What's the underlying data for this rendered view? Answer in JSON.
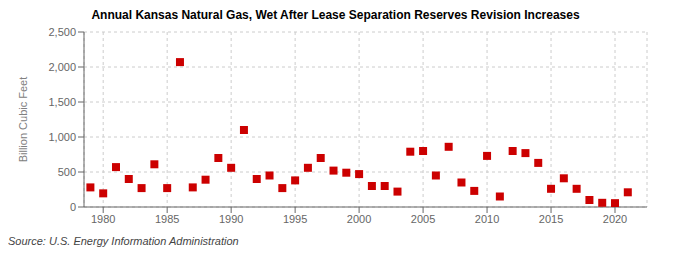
{
  "chart_data": {
    "type": "scatter",
    "title": "Annual Kansas Natural Gas, Wet After Lease Separation Reserves Revision Increases",
    "y_label": "Billion Cubic Feet",
    "annotations": [
      "Source: U.S. Energy Information Administration"
    ],
    "x": [
      1979,
      1980,
      1981,
      1982,
      1983,
      1984,
      1985,
      1986,
      1987,
      1988,
      1989,
      1990,
      1991,
      1992,
      1993,
      1994,
      1995,
      1996,
      1997,
      1998,
      1999,
      2000,
      2001,
      2002,
      2003,
      2004,
      2005,
      2006,
      2007,
      2008,
      2009,
      2010,
      2011,
      2012,
      2013,
      2014,
      2015,
      2016,
      2017,
      2018,
      2019,
      2020,
      2021
    ],
    "values": [
      280,
      195,
      570,
      400,
      270,
      610,
      270,
      2070,
      280,
      390,
      700,
      560,
      1100,
      400,
      450,
      270,
      380,
      560,
      700,
      520,
      490,
      470,
      300,
      300,
      220,
      790,
      800,
      450,
      860,
      350,
      230,
      730,
      150,
      800,
      770,
      630,
      260,
      410,
      260,
      100,
      60,
      55,
      210
    ],
    "color": "#cc0000",
    "marker": "square",
    "xlim": [
      1978.5,
      2022.5
    ],
    "xticks": [
      1980,
      1985,
      1990,
      1995,
      2000,
      2005,
      2010,
      2015,
      2020
    ],
    "ylim": [
      0,
      2500
    ],
    "yticks": [
      0,
      500,
      {
        "value": 1000,
        "label": "1,000"
      },
      {
        "value": 1500,
        "label": "1,500"
      },
      {
        "value": 2000,
        "label": "2,000"
      },
      {
        "value": 2500,
        "label": "2,500"
      }
    ],
    "grid": true
  }
}
